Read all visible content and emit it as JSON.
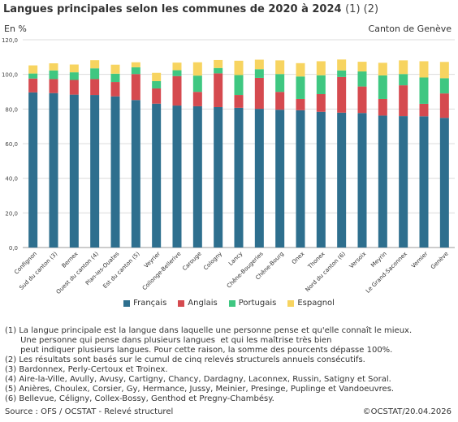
{
  "header": {
    "title": "Langues principales selon les communes de 2020 à 2024",
    "title_notes": "(1) (2)",
    "unit": "En %",
    "region": "Canton de Genève"
  },
  "colors": {
    "francais": "#2e6f8e",
    "anglais": "#d54a4f",
    "portugais": "#3fc781",
    "espagnol": "#f7d460",
    "grid": "#dcdcdc"
  },
  "chart_data": {
    "type": "bar",
    "stacked": true,
    "grid": true,
    "legend_position": "bottom",
    "ylim": [
      0,
      120
    ],
    "yticks": [
      "0,0",
      "20,0",
      "40,0",
      "60,0",
      "80,0",
      "100,0",
      "120,0"
    ],
    "categories": [
      "Confignon",
      "Sud du canton (3)",
      "Bernex",
      "Ouest du canton (4)",
      "Plan-les-Ouates",
      "Est du canton (5)",
      "Veyrier",
      "Collonge-Bellerive",
      "Carouge",
      "Cologny",
      "Lancy",
      "Chêne-Bougeries",
      "Chêne-Bourg",
      "Onex",
      "Thonex",
      "Nord du canton (6)",
      "Versoix",
      "Meyrin",
      "Le Grand-Saconnex",
      "Vernier",
      "Genève"
    ],
    "series": [
      {
        "name": "Français",
        "values": [
          89.6,
          89.2,
          88.3,
          88.1,
          87.3,
          85.2,
          83.1,
          82.0,
          81.6,
          81.1,
          80.7,
          80.1,
          79.6,
          79.3,
          78.4,
          77.9,
          77.7,
          76.2,
          75.9,
          75.8,
          74.9
        ]
      },
      {
        "name": "Anglais",
        "values": [
          8.0,
          8.1,
          8.5,
          9.2,
          8.3,
          15.0,
          8.8,
          17.0,
          8.3,
          19.5,
          7.4,
          17.9,
          10.3,
          6.5,
          10.2,
          20.6,
          15.3,
          9.6,
          17.8,
          7.2,
          14.1
        ]
      },
      {
        "name": "Portugais",
        "values": [
          2.9,
          5.0,
          4.4,
          6.2,
          4.8,
          3.9,
          4.2,
          3.4,
          9.4,
          3.1,
          11.5,
          5.0,
          10.3,
          13.0,
          10.9,
          3.8,
          8.7,
          13.6,
          6.5,
          15.2,
          8.8
        ]
      },
      {
        "name": "Espagnol",
        "values": [
          4.7,
          4.1,
          4.5,
          4.7,
          5.2,
          2.9,
          4.8,
          4.4,
          7.7,
          4.6,
          8.3,
          5.5,
          7.9,
          7.7,
          8.1,
          6.3,
          5.6,
          7.3,
          7.9,
          9.4,
          9.4
        ]
      }
    ]
  },
  "footnotes": [
    "(1) La langue principale est la langue dans laquelle une personne pense et qu'elle connaît le mieux.",
    "      Une personne qui pense dans plusieurs langues  et qui les maîtrise très bien",
    "      peut indiquer plusieurs langues. Pour cette raison, la somme des pourcents dépasse 100%.",
    "(2) Les résultats sont basés sur le cumul de cinq relevés structurels annuels consécutifs.",
    "(3) Bardonnex, Perly-Certoux et Troinex.",
    "(4) Aire-la-Ville, Avully, Avusy, Cartigny, Chancy, Dardagny, Laconnex, Russin, Satigny et Soral.",
    "(5) Anières, Choulex, Corsier, Gy, Hermance, Jussy, Meinier, Presinge, Puplinge et Vandoeuvres.",
    "(6) Bellevue, Céligny, Collex-Bossy, Genthod et Pregny-Chambésy."
  ],
  "footer": {
    "source": "Source : OFS / OCSTAT - Relevé structurel",
    "copyright": "©OCSTAT/20.04.2026"
  }
}
